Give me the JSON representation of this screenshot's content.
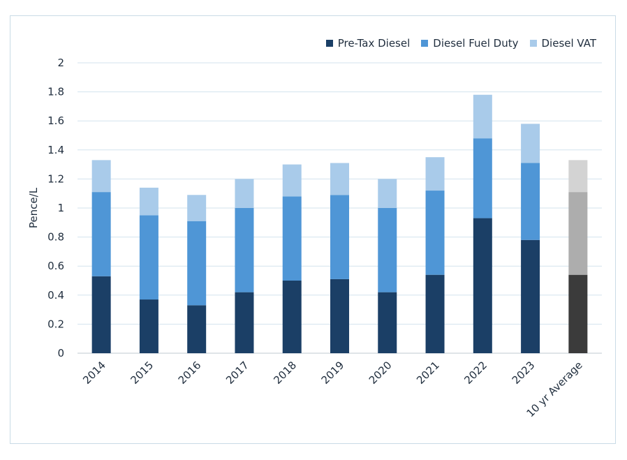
{
  "chart_data": {
    "type": "bar",
    "stacked": true,
    "categories": [
      "2014",
      "2015",
      "2016",
      "2017",
      "2018",
      "2019",
      "2020",
      "2021",
      "2022",
      "2023",
      "10 yr Average"
    ],
    "series": [
      {
        "name": "Pre-Tax Diesel",
        "color": "#1b3f66",
        "values": [
          0.53,
          0.37,
          0.33,
          0.42,
          0.5,
          0.51,
          0.42,
          0.54,
          0.93,
          0.78,
          0.54
        ]
      },
      {
        "name": "Diesel Fuel Duty",
        "color": "#4f96d6",
        "values": [
          0.58,
          0.58,
          0.58,
          0.58,
          0.58,
          0.58,
          0.58,
          0.58,
          0.55,
          0.53,
          0.57
        ]
      },
      {
        "name": "Diesel VAT",
        "color": "#a9cbea",
        "values": [
          0.22,
          0.19,
          0.18,
          0.2,
          0.22,
          0.22,
          0.2,
          0.23,
          0.3,
          0.27,
          0.22
        ]
      }
    ],
    "highlight_category": "10 yr Average",
    "highlight_colors": [
      "#3b3b3b",
      "#adadad",
      "#d3d3d3"
    ],
    "ylabel": "Pence/L",
    "xlabel": "",
    "ylim": [
      0,
      2
    ],
    "yticks": [
      "0",
      "0.2",
      "0.4",
      "0.6",
      "0.8",
      "1",
      "1.2",
      "1.4",
      "1.6",
      "1.8",
      "2"
    ],
    "grid": true,
    "legend_position": "top-right"
  }
}
